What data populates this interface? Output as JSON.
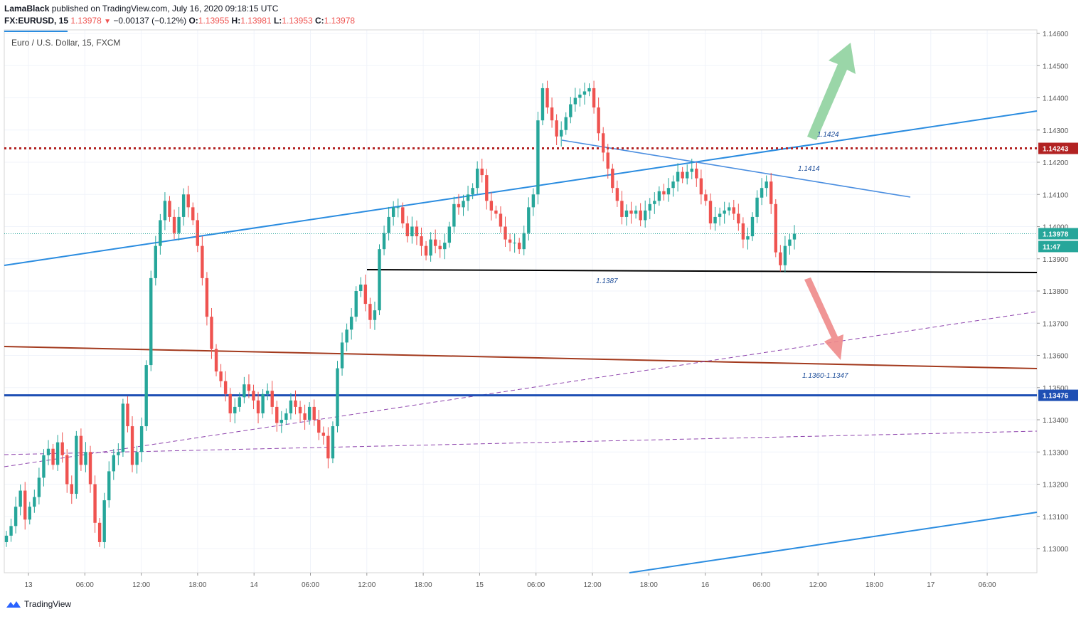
{
  "header": {
    "author": "LamaBlack",
    "published": "published on TradingView.com, July 16, 2020 09:18:15 UTC",
    "symbol": "FX:EURUSD, 15",
    "last": "1.13978",
    "change": "−0.00137 (−0.12%)",
    "open_label": "O:",
    "open": "1.13955",
    "high_label": "H:",
    "high": "1.13981",
    "low_label": "L:",
    "low": "1.13953",
    "close_label": "C:",
    "close": "1.13978"
  },
  "footer": {
    "brand": "TradingView"
  },
  "chart_data": {
    "type": "candlestick",
    "title": "Euro / U.S. Dollar, 15, FXCM",
    "ylim": [
      1.1293,
      1.1461
    ],
    "y_ticks": [
      "1.14600",
      "1.14500",
      "1.14400",
      "1.14300",
      "1.14200",
      "1.14100",
      "1.14000",
      "1.13900",
      "1.13800",
      "1.13700",
      "1.13600",
      "1.13500",
      "1.13400",
      "1.13300",
      "1.13200",
      "1.13100",
      "1.13000"
    ],
    "x_ticks": [
      "13",
      "06:00",
      "12:00",
      "18:00",
      "14",
      "06:00",
      "12:00",
      "18:00",
      "15",
      "06:00",
      "12:00",
      "18:00",
      "16",
      "06:00",
      "12:00",
      "18:00",
      "17",
      "06:00"
    ],
    "price_series": [
      1.1304,
      1.1307,
      1.1313,
      1.1318,
      1.1309,
      1.1313,
      1.1316,
      1.1322,
      1.1329,
      1.1331,
      1.1326,
      1.1333,
      1.1329,
      1.132,
      1.1317,
      1.1335,
      1.1326,
      1.133,
      1.132,
      1.1308,
      1.1302,
      1.1315,
      1.1324,
      1.1329,
      1.133,
      1.1345,
      1.1338,
      1.1326,
      1.133,
      1.1338,
      1.1357,
      1.1384,
      1.1394,
      1.1402,
      1.1408,
      1.1403,
      1.1398,
      1.1403,
      1.141,
      1.1406,
      1.1402,
      1.1394,
      1.1384,
      1.1372,
      1.1362,
      1.1355,
      1.1352,
      1.1348,
      1.1342,
      1.1344,
      1.1347,
      1.1351,
      1.1349,
      1.1346,
      1.1342,
      1.1348,
      1.1349,
      1.1344,
      1.1339,
      1.134,
      1.1342,
      1.1346,
      1.1344,
      1.1342,
      1.134,
      1.1344,
      1.134,
      1.1336,
      1.1335,
      1.1328,
      1.1338,
      1.1356,
      1.1364,
      1.1368,
      1.1372,
      1.138,
      1.1382,
      1.1376,
      1.1371,
      1.1374,
      1.1393,
      1.1398,
      1.1403,
      1.1406,
      1.1406,
      1.1401,
      1.1397,
      1.14,
      1.1397,
      1.1394,
      1.1391,
      1.1396,
      1.1394,
      1.1393,
      1.1395,
      1.14,
      1.1407,
      1.1406,
      1.1408,
      1.141,
      1.1412,
      1.1418,
      1.1416,
      1.1408,
      1.1405,
      1.1404,
      1.14,
      1.1396,
      1.1395,
      1.1395,
      1.1393,
      1.1398,
      1.1406,
      1.141,
      1.1433,
      1.1443,
      1.1437,
      1.1433,
      1.1428,
      1.143,
      1.1434,
      1.1438,
      1.144,
      1.1441,
      1.1442,
      1.1443,
      1.1437,
      1.1429,
      1.1423,
      1.1418,
      1.1412,
      1.1408,
      1.1403,
      1.1405,
      1.1404,
      1.1405,
      1.1402,
      1.1405,
      1.1407,
      1.1408,
      1.1411,
      1.141,
      1.1412,
      1.1414,
      1.1417,
      1.1415,
      1.1417,
      1.1418,
      1.1415,
      1.141,
      1.1408,
      1.1401,
      1.1403,
      1.1404,
      1.1405,
      1.1406,
      1.1404,
      1.1401,
      1.1396,
      1.1397,
      1.1403,
      1.1409,
      1.1412,
      1.1414,
      1.1407,
      1.1392,
      1.1388,
      1.1394,
      1.1396,
      1.13978
    ],
    "last_price_label": "1.13978",
    "countdown_label": "11:47",
    "levels": [
      {
        "value": 1.14243,
        "label": "1.14243",
        "style": "dotted",
        "color": "#b22222"
      },
      {
        "value": 1.13476,
        "label": "1.13476",
        "style": "solid",
        "color": "#1e4fb4"
      }
    ],
    "annotations": [
      "1.1424",
      "1.1414",
      "1.1387",
      "1.1360-1.1347"
    ],
    "colors": {
      "up": "#26a69a",
      "down": "#ef5350",
      "trend": "#2a8ce0",
      "support": "#000000",
      "channel": "#a33a1e",
      "dashed": "#8e44ad",
      "arrow_up": "#8fd19e",
      "arrow_down": "#ee8a8a"
    },
    "grid": true
  }
}
